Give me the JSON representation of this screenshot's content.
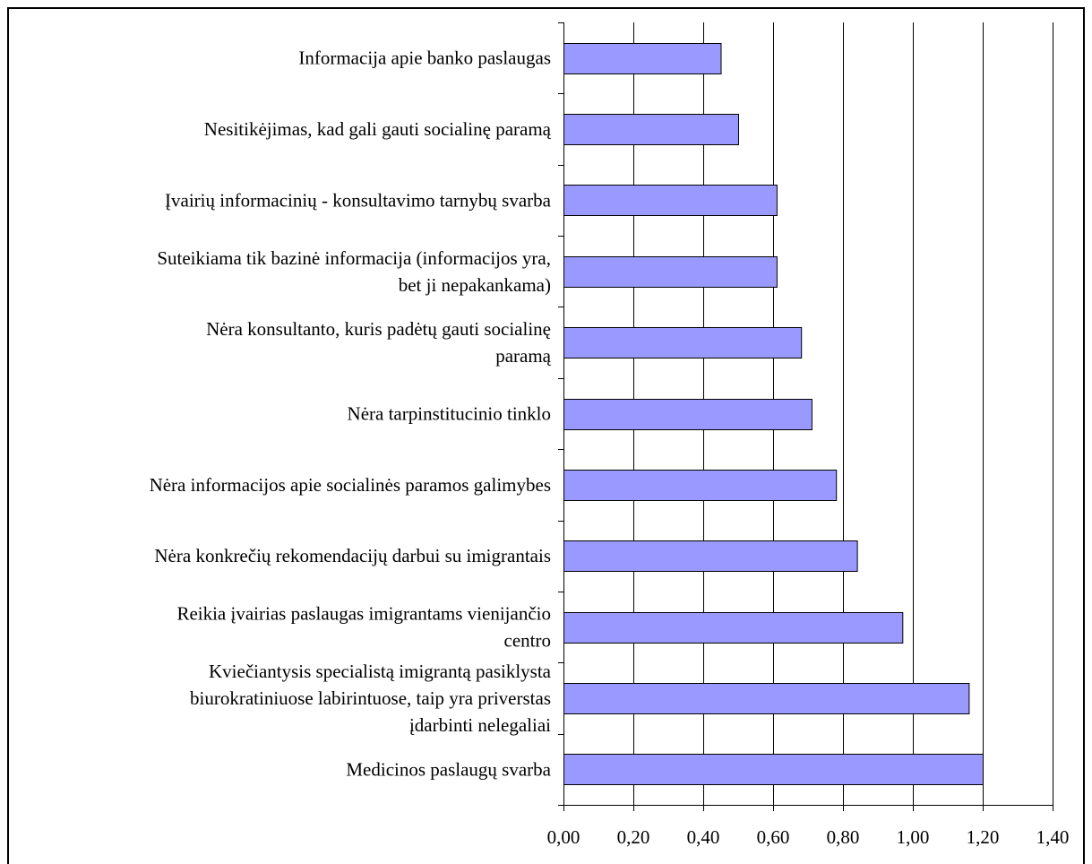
{
  "chart_data": {
    "type": "bar",
    "orientation": "horizontal",
    "title": "",
    "xlabel": "",
    "ylabel": "",
    "xlim": [
      0,
      1.4
    ],
    "x_ticks": [
      "0,00",
      "0,20",
      "0,40",
      "0,60",
      "0,80",
      "1,00",
      "1,20",
      "1,40"
    ],
    "grid": true,
    "legend": "none",
    "bar_color": "#9999ff",
    "categories": [
      "Informacija apie banko paslaugas",
      "Nesitikėjimas, kad gali gauti socialinę paramą",
      "Įvairių informacinių - konsultavimo tarnybų svarba",
      "Suteikiama tik bazinė informacija (informacijos yra, bet ji nepakankama)",
      "Nėra konsultanto, kuris padėtų gauti socialinę paramą",
      "Nėra tarpinstitucinio tinklo",
      "Nėra informacijos apie socialinės paramos galimybes",
      "Nėra konkrečių rekomendacijų darbui su imigrantais",
      "Reikia įvairias paslaugas imigrantams vienijančio centro",
      "Kviečiantysis specialistą imigrantą pasiklysta biurokratiniuose labirintuose, taip yra priverstas įdarbinti nelegaliai",
      "Medicinos paslaugų svarba"
    ],
    "category_lines": [
      [
        "Informacija apie banko paslaugas"
      ],
      [
        "Nesitikėjimas, kad gali gauti socialinę paramą"
      ],
      [
        "Įvairių informacinių - konsultavimo tarnybų svarba"
      ],
      [
        "Suteikiama tik bazinė informacija (informacijos yra,",
        "bet ji nepakankama)"
      ],
      [
        "Nėra konsultanto, kuris padėtų gauti socialinę",
        "paramą"
      ],
      [
        "Nėra tarpinstitucinio tinklo"
      ],
      [
        "Nėra informacijos apie socialinės paramos galimybes"
      ],
      [
        "Nėra konkrečių rekomendacijų darbui su imigrantais"
      ],
      [
        "Reikia įvairias paslaugas imigrantams vienijančio",
        "centro"
      ],
      [
        "Kviečiantysis specialistą imigrantą pasiklysta",
        "biurokratiniuose labirintuose, taip yra priverstas",
        "įdarbinti nelegaliai"
      ],
      [
        "Medicinos paslaugų svarba"
      ]
    ],
    "values": [
      0.45,
      0.5,
      0.61,
      0.61,
      0.68,
      0.71,
      0.78,
      0.84,
      0.97,
      1.16,
      1.2
    ]
  }
}
